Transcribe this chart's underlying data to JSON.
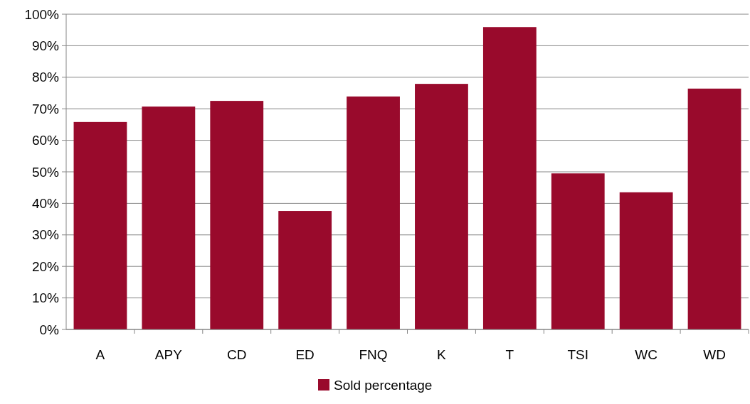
{
  "chart_data": {
    "type": "bar",
    "categories": [
      "A",
      "APY",
      "CD",
      "ED",
      "FNQ",
      "K",
      "T",
      "TSI",
      "WC",
      "WD"
    ],
    "series": [
      {
        "name": "Sold percentage",
        "color": "#990a2c",
        "values": [
          65.8,
          70.7,
          72.5,
          37.6,
          73.9,
          77.9,
          95.9,
          49.5,
          43.5,
          76.4
        ]
      }
    ],
    "ylim": [
      0,
      100
    ],
    "yticks": [
      {
        "value": 0,
        "label": "0%"
      },
      {
        "value": 10,
        "label": "10%"
      },
      {
        "value": 20,
        "label": "20%"
      },
      {
        "value": 30,
        "label": "30%"
      },
      {
        "value": 40,
        "label": "40%"
      },
      {
        "value": 50,
        "label": "50%"
      },
      {
        "value": 60,
        "label": "60%"
      },
      {
        "value": 70,
        "label": "70%"
      },
      {
        "value": 80,
        "label": "80%"
      },
      {
        "value": 90,
        "label": "90%"
      },
      {
        "value": 100,
        "label": "100%"
      }
    ],
    "grid": "y",
    "legend": "bottom"
  }
}
